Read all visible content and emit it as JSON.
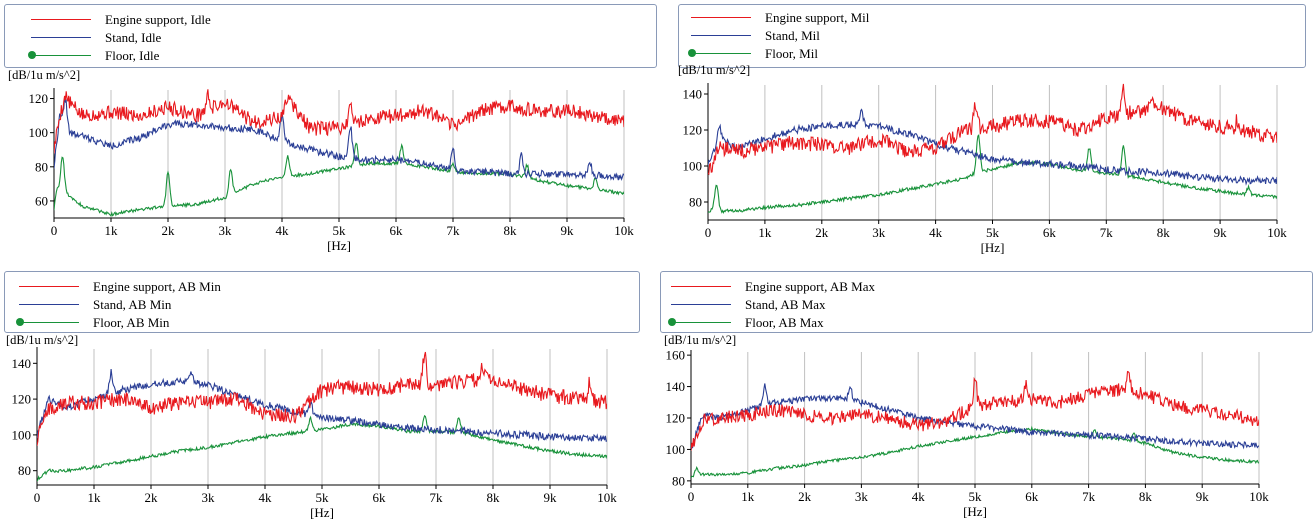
{
  "colors": {
    "engine": "#e8191e",
    "stand": "#2b3f96",
    "floor": "#18923a",
    "grid": "#c0c0c0",
    "legend_border": "#8a9ab8"
  },
  "chart_data": [
    {
      "type": "line",
      "ylabel": "[dB/1u m/s^2]",
      "xlabel": "[Hz]",
      "xlim": [
        0,
        10000
      ],
      "ylim": [
        50,
        125
      ],
      "xticks": [
        0,
        1000,
        2000,
        3000,
        4000,
        5000,
        6000,
        7000,
        8000,
        9000,
        10000
      ],
      "xtick_labels": [
        "0",
        "1k",
        "2k",
        "3k",
        "4k",
        "5k",
        "6k",
        "7k",
        "8k",
        "9k",
        "10k"
      ],
      "yticks": [
        60,
        80,
        100,
        120
      ],
      "grid": "vertical",
      "legend": "top",
      "series": [
        {
          "name": "Engine support, Idle",
          "color": "#e8191e",
          "x": [
            0,
            100,
            200,
            500,
            1000,
            1500,
            2000,
            2500,
            3000,
            3500,
            4000,
            4100,
            4500,
            5000,
            5500,
            6000,
            6500,
            7000,
            7500,
            8000,
            8500,
            9000,
            9500,
            10000
          ],
          "y": [
            90,
            110,
            120,
            110,
            112,
            110,
            115,
            110,
            118,
            106,
            109,
            120,
            102,
            103,
            108,
            110,
            113,
            104,
            113,
            116,
            112,
            113,
            110,
            107
          ],
          "peaks": [
            [
              200,
              122
            ],
            [
              2700,
              122
            ],
            [
              4100,
              122
            ],
            [
              5200,
              117
            ]
          ]
        },
        {
          "name": "Stand, Idle",
          "color": "#2b3f96",
          "x": [
            0,
            100,
            200,
            500,
            1000,
            1500,
            2000,
            2500,
            3000,
            3500,
            4000,
            4500,
            5000,
            5500,
            6000,
            6500,
            7000,
            7500,
            8000,
            8500,
            9000,
            9500,
            10000
          ],
          "y": [
            80,
            110,
            100,
            98,
            92,
            97,
            105,
            105,
            103,
            102,
            95,
            90,
            86,
            84,
            84,
            82,
            78,
            77,
            76,
            76,
            75,
            75,
            74
          ],
          "peaks": [
            [
              200,
              120
            ],
            [
              4000,
              110
            ],
            [
              5200,
              104
            ],
            [
              7000,
              90
            ],
            [
              8200,
              87
            ],
            [
              9400,
              82
            ]
          ]
        },
        {
          "name": "Floor, Idle",
          "color": "#18923a",
          "x": [
            0,
            50,
            200,
            500,
            1000,
            1500,
            2000,
            2500,
            3000,
            3500,
            4000,
            4500,
            5000,
            5500,
            6000,
            6500,
            7000,
            7500,
            8000,
            8500,
            9000,
            9500,
            10000
          ],
          "y": [
            55,
            68,
            65,
            57,
            52,
            55,
            57,
            58,
            62,
            70,
            74,
            76,
            79,
            82,
            82,
            80,
            77,
            76,
            76,
            72,
            69,
            67,
            64
          ],
          "peaks": [
            [
              150,
              86
            ],
            [
              2000,
              77
            ],
            [
              3100,
              79
            ],
            [
              4100,
              86
            ],
            [
              5300,
              94
            ],
            [
              6100,
              92
            ],
            [
              7000,
              82
            ],
            [
              8300,
              81
            ],
            [
              9500,
              73
            ]
          ]
        }
      ]
    },
    {
      "type": "line",
      "ylabel": "[dB/1u m/s^2]",
      "xlabel": "[Hz]",
      "xlim": [
        0,
        10000
      ],
      "ylim": [
        70,
        145
      ],
      "xticks": [
        0,
        1000,
        2000,
        3000,
        4000,
        5000,
        6000,
        7000,
        8000,
        9000,
        10000
      ],
      "xtick_labels": [
        "0",
        "1k",
        "2k",
        "3k",
        "4k",
        "5k",
        "6k",
        "7k",
        "8k",
        "9k",
        "10k"
      ],
      "yticks": [
        80,
        100,
        120,
        140
      ],
      "grid": "vertical",
      "legend": "top",
      "series": [
        {
          "name": "Engine support, Mil",
          "color": "#e8191e",
          "x": [
            0,
            200,
            500,
            1000,
            1500,
            2000,
            2500,
            3000,
            3500,
            4000,
            4500,
            5000,
            5500,
            6000,
            6500,
            7000,
            7500,
            8000,
            8500,
            9000,
            9500,
            10000
          ],
          "y": [
            95,
            110,
            108,
            110,
            113,
            112,
            110,
            115,
            108,
            110,
            120,
            122,
            125,
            125,
            120,
            127,
            130,
            132,
            125,
            122,
            119,
            115
          ],
          "peaks": [
            [
              4700,
              134
            ],
            [
              7300,
              143
            ],
            [
              7800,
              138
            ],
            [
              9300,
              125
            ]
          ]
        },
        {
          "name": "Stand, Mil",
          "color": "#2b3f96",
          "x": [
            0,
            200,
            500,
            1000,
            1500,
            2000,
            2500,
            3000,
            3500,
            4000,
            4500,
            5000,
            5500,
            6000,
            6500,
            7000,
            7500,
            8000,
            8500,
            9000,
            9500,
            10000
          ],
          "y": [
            100,
            115,
            110,
            115,
            120,
            122,
            123,
            122,
            118,
            112,
            108,
            104,
            102,
            101,
            100,
            98,
            97,
            96,
            94,
            93,
            92,
            92
          ],
          "peaks": [
            [
              200,
              122
            ],
            [
              2700,
              130
            ]
          ]
        },
        {
          "name": "Floor, Mil",
          "color": "#18923a",
          "x": [
            0,
            100,
            200,
            500,
            1000,
            1500,
            2000,
            2500,
            3000,
            3500,
            4000,
            4500,
            4750,
            5000,
            5500,
            6000,
            6500,
            7000,
            7500,
            8000,
            8500,
            9000,
            9500,
            10000
          ],
          "y": [
            74,
            77,
            75,
            75,
            77,
            78,
            80,
            82,
            84,
            87,
            90,
            93,
            97,
            98,
            102,
            101,
            98,
            96,
            94,
            91,
            88,
            86,
            84,
            83
          ],
          "peaks": [
            [
              150,
              90
            ],
            [
              4750,
              118
            ],
            [
              6700,
              110
            ],
            [
              7300,
              111
            ],
            [
              9500,
              88
            ]
          ]
        }
      ]
    },
    {
      "type": "line",
      "ylabel": "[dB/1u m/s^2]",
      "xlabel": "[Hz]",
      "xlim": [
        0,
        10000
      ],
      "ylim": [
        72,
        148
      ],
      "xticks": [
        0,
        1000,
        2000,
        3000,
        4000,
        5000,
        6000,
        7000,
        8000,
        9000,
        10000
      ],
      "xtick_labels": [
        "0",
        "1k",
        "2k",
        "3k",
        "4k",
        "5k",
        "6k",
        "7k",
        "8k",
        "9k",
        "10k"
      ],
      "yticks": [
        80,
        100,
        120,
        140
      ],
      "grid": "vertical",
      "legend": "top",
      "series": [
        {
          "name": "Engine support, AB Min",
          "color": "#e8191e",
          "x": [
            0,
            200,
            500,
            1000,
            1500,
            2000,
            2500,
            3000,
            3500,
            4000,
            4500,
            5000,
            5500,
            6000,
            6500,
            7000,
            7500,
            8000,
            8500,
            9000,
            9500,
            10000
          ],
          "y": [
            98,
            115,
            118,
            118,
            120,
            115,
            118,
            118,
            120,
            112,
            110,
            125,
            127,
            125,
            128,
            128,
            130,
            132,
            126,
            122,
            120,
            118
          ],
          "peaks": [
            [
              6800,
              146
            ],
            [
              7800,
              137
            ],
            [
              9700,
              130
            ]
          ]
        },
        {
          "name": "Stand, AB Min",
          "color": "#2b3f96",
          "x": [
            0,
            200,
            500,
            1000,
            1500,
            2000,
            2500,
            3000,
            3500,
            4000,
            4500,
            5000,
            5500,
            6000,
            6500,
            7000,
            7500,
            8000,
            8500,
            9000,
            9500,
            10000
          ],
          "y": [
            100,
            120,
            115,
            120,
            125,
            128,
            130,
            128,
            122,
            117,
            113,
            110,
            108,
            106,
            104,
            103,
            102,
            101,
            100,
            99,
            98,
            98
          ],
          "peaks": [
            [
              1300,
              135
            ],
            [
              2700,
              135
            ],
            [
              4800,
              118
            ]
          ]
        },
        {
          "name": "Floor, AB Min",
          "color": "#18923a",
          "x": [
            0,
            200,
            500,
            1000,
            1500,
            2000,
            2500,
            3000,
            3500,
            4000,
            4500,
            5000,
            5500,
            6000,
            6500,
            7000,
            7500,
            8000,
            8500,
            9000,
            9500,
            10000
          ],
          "y": [
            75,
            80,
            80,
            82,
            85,
            88,
            91,
            93,
            96,
            99,
            101,
            103,
            106,
            105,
            102,
            102,
            101,
            97,
            94,
            91,
            89,
            88
          ],
          "peaks": [
            [
              4800,
              109
            ],
            [
              6800,
              111
            ],
            [
              7400,
              110
            ]
          ]
        }
      ]
    },
    {
      "type": "line",
      "ylabel": "[dB/1u m/s^2]",
      "xlabel": "[Hz]",
      "xlim": [
        0,
        10000
      ],
      "ylim": [
        78,
        162
      ],
      "xticks": [
        0,
        1000,
        2000,
        3000,
        4000,
        5000,
        6000,
        7000,
        8000,
        9000,
        10000
      ],
      "xtick_labels": [
        "0",
        "1k",
        "2k",
        "3k",
        "4k",
        "5k",
        "6k",
        "7k",
        "8k",
        "9k",
        "10k"
      ],
      "yticks": [
        80,
        100,
        120,
        140,
        160
      ],
      "grid": "vertical",
      "legend": "top",
      "series": [
        {
          "name": "Engine support, AB Max",
          "color": "#e8191e",
          "x": [
            0,
            200,
            500,
            1000,
            1500,
            2000,
            2500,
            3000,
            3500,
            4000,
            4500,
            5000,
            5500,
            6000,
            6500,
            7000,
            7500,
            8000,
            8500,
            9000,
            9500,
            10000
          ],
          "y": [
            100,
            118,
            120,
            122,
            125,
            122,
            120,
            122,
            120,
            115,
            118,
            128,
            130,
            132,
            130,
            135,
            138,
            135,
            128,
            125,
            122,
            118
          ],
          "peaks": [
            [
              5000,
              145
            ],
            [
              5900,
              140
            ],
            [
              7700,
              152
            ]
          ]
        },
        {
          "name": "Stand, AB Max",
          "color": "#2b3f96",
          "x": [
            0,
            200,
            500,
            1000,
            1500,
            2000,
            2500,
            3000,
            3500,
            4000,
            4500,
            5000,
            5500,
            6000,
            6500,
            7000,
            7500,
            8000,
            8500,
            9000,
            9500,
            10000
          ],
          "y": [
            100,
            122,
            120,
            125,
            130,
            132,
            133,
            130,
            125,
            120,
            117,
            115,
            113,
            111,
            110,
            109,
            108,
            107,
            105,
            104,
            103,
            103
          ],
          "peaks": [
            [
              1300,
              140
            ],
            [
              2800,
              140
            ]
          ]
        },
        {
          "name": "Floor, AB Max",
          "color": "#18923a",
          "x": [
            0,
            200,
            500,
            1000,
            1500,
            2000,
            2500,
            3000,
            3500,
            4000,
            4500,
            5000,
            5500,
            6000,
            6500,
            7000,
            7500,
            8000,
            8500,
            9000,
            9500,
            10000
          ],
          "y": [
            82,
            84,
            84,
            85,
            88,
            90,
            93,
            95,
            98,
            102,
            105,
            108,
            111,
            113,
            110,
            108,
            107,
            104,
            98,
            95,
            93,
            92
          ],
          "peaks": [
            [
              100,
              88
            ],
            [
              7100,
              112
            ],
            [
              7800,
              110
            ]
          ]
        }
      ]
    }
  ]
}
